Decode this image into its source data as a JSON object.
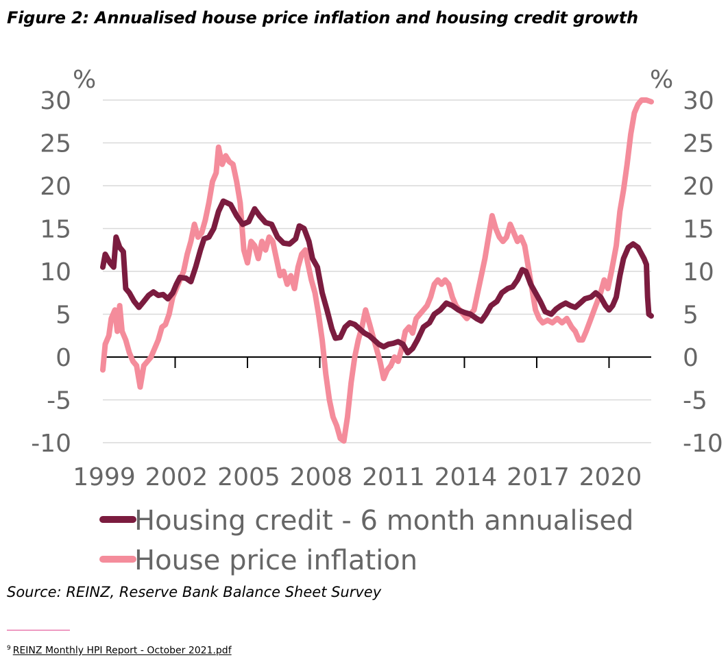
{
  "title": "Figure 2: Annualised house price inflation and housing credit growth",
  "source": "Source: REINZ, Reserve Bank Balance Sheet Survey",
  "footnote": {
    "marker": "9",
    "link_text": "REINZ Monthly HPI Report - October 2021.pdf"
  },
  "chart_data": {
    "type": "line",
    "title": "Annualised house price inflation and housing credit growth",
    "ylabel_left": "%",
    "ylabel_right": "%",
    "ylim": [
      -10,
      30
    ],
    "yticks": [
      30,
      25,
      20,
      15,
      10,
      5,
      0,
      -5,
      -10
    ],
    "ytick_labels": [
      "30",
      "25",
      "20",
      "15",
      "10",
      "5",
      "0",
      "-5",
      "-10"
    ],
    "xlim": [
      1999,
      2021.75
    ],
    "xticks": [
      1999,
      2002,
      2005,
      2008,
      2011,
      2014,
      2017,
      2020
    ],
    "xtick_labels": [
      "1999",
      "2002",
      "2005",
      "2008",
      "2011",
      "2014",
      "2017",
      "2020"
    ],
    "grid": true,
    "legend_position": "bottom",
    "series": [
      {
        "name": "Housing credit - 6 month annualised",
        "color": "#7b1c3f",
        "points": [
          [
            1999.0,
            10.5
          ],
          [
            1999.1,
            12.0
          ],
          [
            1999.3,
            11.0
          ],
          [
            1999.45,
            10.5
          ],
          [
            1999.55,
            14.0
          ],
          [
            1999.7,
            12.8
          ],
          [
            1999.85,
            12.3
          ],
          [
            1999.95,
            8.0
          ],
          [
            2000.1,
            7.5
          ],
          [
            2000.3,
            6.5
          ],
          [
            2000.5,
            5.8
          ],
          [
            2000.7,
            6.5
          ],
          [
            2000.9,
            7.2
          ],
          [
            2001.1,
            7.6
          ],
          [
            2001.3,
            7.2
          ],
          [
            2001.5,
            7.3
          ],
          [
            2001.7,
            6.8
          ],
          [
            2001.9,
            7.5
          ],
          [
            2002.05,
            8.5
          ],
          [
            2002.2,
            9.3
          ],
          [
            2002.45,
            9.2
          ],
          [
            2002.65,
            8.8
          ],
          [
            2002.85,
            10.5
          ],
          [
            2003.05,
            12.5
          ],
          [
            2003.2,
            13.8
          ],
          [
            2003.4,
            14.0
          ],
          [
            2003.6,
            15.0
          ],
          [
            2003.8,
            17.0
          ],
          [
            2004.0,
            18.2
          ],
          [
            2004.3,
            17.8
          ],
          [
            2004.55,
            16.5
          ],
          [
            2004.8,
            15.5
          ],
          [
            2005.05,
            15.8
          ],
          [
            2005.3,
            17.3
          ],
          [
            2005.5,
            16.5
          ],
          [
            2005.75,
            15.7
          ],
          [
            2006.0,
            15.5
          ],
          [
            2006.25,
            14.0
          ],
          [
            2006.5,
            13.3
          ],
          [
            2006.75,
            13.2
          ],
          [
            2007.0,
            13.8
          ],
          [
            2007.15,
            15.3
          ],
          [
            2007.35,
            15.0
          ],
          [
            2007.55,
            13.5
          ],
          [
            2007.7,
            11.5
          ],
          [
            2007.9,
            10.5
          ],
          [
            2008.1,
            7.5
          ],
          [
            2008.3,
            5.5
          ],
          [
            2008.5,
            3.3
          ],
          [
            2008.65,
            2.2
          ],
          [
            2008.85,
            2.3
          ],
          [
            2009.05,
            3.5
          ],
          [
            2009.25,
            4.0
          ],
          [
            2009.45,
            3.8
          ],
          [
            2009.65,
            3.3
          ],
          [
            2009.85,
            2.8
          ],
          [
            2010.05,
            2.5
          ],
          [
            2010.25,
            2.0
          ],
          [
            2010.45,
            1.5
          ],
          [
            2010.65,
            1.2
          ],
          [
            2010.85,
            1.5
          ],
          [
            2011.05,
            1.6
          ],
          [
            2011.25,
            1.8
          ],
          [
            2011.45,
            1.5
          ],
          [
            2011.65,
            0.5
          ],
          [
            2011.85,
            1.0
          ],
          [
            2012.05,
            2.0
          ],
          [
            2012.3,
            3.5
          ],
          [
            2012.55,
            4.0
          ],
          [
            2012.75,
            5.0
          ],
          [
            2013.0,
            5.5
          ],
          [
            2013.25,
            6.3
          ],
          [
            2013.5,
            6.0
          ],
          [
            2013.75,
            5.5
          ],
          [
            2014.0,
            5.2
          ],
          [
            2014.25,
            5.0
          ],
          [
            2014.5,
            4.5
          ],
          [
            2014.7,
            4.2
          ],
          [
            2014.9,
            5.0
          ],
          [
            2015.1,
            6.0
          ],
          [
            2015.35,
            6.5
          ],
          [
            2015.55,
            7.5
          ],
          [
            2015.8,
            8.0
          ],
          [
            2016.0,
            8.2
          ],
          [
            2016.2,
            9.0
          ],
          [
            2016.4,
            10.2
          ],
          [
            2016.55,
            10.0
          ],
          [
            2016.75,
            8.5
          ],
          [
            2016.95,
            7.5
          ],
          [
            2017.15,
            6.5
          ],
          [
            2017.35,
            5.3
          ],
          [
            2017.6,
            5.0
          ],
          [
            2017.8,
            5.6
          ],
          [
            2018.0,
            6.0
          ],
          [
            2018.2,
            6.3
          ],
          [
            2018.4,
            6.0
          ],
          [
            2018.6,
            5.8
          ],
          [
            2018.8,
            6.3
          ],
          [
            2019.0,
            6.8
          ],
          [
            2019.25,
            7.0
          ],
          [
            2019.45,
            7.5
          ],
          [
            2019.65,
            7.0
          ],
          [
            2019.85,
            6.0
          ],
          [
            2020.0,
            5.5
          ],
          [
            2020.15,
            6.0
          ],
          [
            2020.3,
            7.0
          ],
          [
            2020.45,
            9.5
          ],
          [
            2020.6,
            11.5
          ],
          [
            2020.8,
            12.8
          ],
          [
            2021.0,
            13.2
          ],
          [
            2021.2,
            12.8
          ],
          [
            2021.45,
            11.5
          ],
          [
            2021.55,
            10.8
          ],
          [
            2021.6,
            7.0
          ],
          [
            2021.65,
            5.0
          ],
          [
            2021.75,
            4.8
          ]
        ]
      },
      {
        "name": "House price inflation",
        "color": "#f48c9b",
        "points": [
          [
            1999.0,
            -1.5
          ],
          [
            1999.1,
            1.5
          ],
          [
            1999.25,
            2.5
          ],
          [
            1999.35,
            4.5
          ],
          [
            1999.5,
            5.5
          ],
          [
            1999.6,
            3.0
          ],
          [
            1999.7,
            6.0
          ],
          [
            1999.8,
            3.0
          ],
          [
            1999.95,
            2.0
          ],
          [
            2000.1,
            0.5
          ],
          [
            2000.25,
            -0.5
          ],
          [
            2000.4,
            -1.0
          ],
          [
            2000.55,
            -3.5
          ],
          [
            2000.7,
            -1.0
          ],
          [
            2000.85,
            -0.5
          ],
          [
            2001.0,
            0.0
          ],
          [
            2001.15,
            1.0
          ],
          [
            2001.3,
            2.0
          ],
          [
            2001.45,
            3.5
          ],
          [
            2001.6,
            3.8
          ],
          [
            2001.75,
            5.0
          ],
          [
            2001.9,
            7.0
          ],
          [
            2002.05,
            8.0
          ],
          [
            2002.2,
            9.0
          ],
          [
            2002.35,
            10.0
          ],
          [
            2002.5,
            12.0
          ],
          [
            2002.65,
            13.5
          ],
          [
            2002.8,
            15.5
          ],
          [
            2002.95,
            14.0
          ],
          [
            2003.1,
            14.5
          ],
          [
            2003.25,
            16.0
          ],
          [
            2003.4,
            18.0
          ],
          [
            2003.55,
            20.5
          ],
          [
            2003.7,
            21.5
          ],
          [
            2003.8,
            24.5
          ],
          [
            2003.95,
            22.5
          ],
          [
            2004.1,
            23.5
          ],
          [
            2004.25,
            22.8
          ],
          [
            2004.4,
            22.5
          ],
          [
            2004.55,
            20.5
          ],
          [
            2004.7,
            18.0
          ],
          [
            2004.85,
            12.5
          ],
          [
            2005.0,
            11.0
          ],
          [
            2005.15,
            13.5
          ],
          [
            2005.3,
            13.0
          ],
          [
            2005.45,
            11.5
          ],
          [
            2005.6,
            13.5
          ],
          [
            2005.75,
            12.5
          ],
          [
            2005.9,
            14.0
          ],
          [
            2006.05,
            13.5
          ],
          [
            2006.2,
            11.5
          ],
          [
            2006.35,
            9.5
          ],
          [
            2006.5,
            10.0
          ],
          [
            2006.65,
            8.5
          ],
          [
            2006.8,
            9.5
          ],
          [
            2006.95,
            8.0
          ],
          [
            2007.1,
            10.5
          ],
          [
            2007.25,
            12.0
          ],
          [
            2007.4,
            12.5
          ],
          [
            2007.5,
            11.0
          ],
          [
            2007.65,
            9.0
          ],
          [
            2007.8,
            7.5
          ],
          [
            2007.95,
            5.0
          ],
          [
            2008.1,
            2.0
          ],
          [
            2008.25,
            -2.0
          ],
          [
            2008.4,
            -5.0
          ],
          [
            2008.55,
            -7.0
          ],
          [
            2008.7,
            -8.0
          ],
          [
            2008.85,
            -9.5
          ],
          [
            2009.0,
            -9.8
          ],
          [
            2009.15,
            -7.0
          ],
          [
            2009.3,
            -3.0
          ],
          [
            2009.45,
            0.0
          ],
          [
            2009.6,
            2.0
          ],
          [
            2009.75,
            3.5
          ],
          [
            2009.9,
            5.5
          ],
          [
            2010.05,
            4.0
          ],
          [
            2010.2,
            2.5
          ],
          [
            2010.35,
            1.0
          ],
          [
            2010.5,
            -0.5
          ],
          [
            2010.65,
            -2.5
          ],
          [
            2010.8,
            -1.5
          ],
          [
            2010.95,
            -1.0
          ],
          [
            2011.1,
            0.0
          ],
          [
            2011.25,
            -0.5
          ],
          [
            2011.4,
            1.0
          ],
          [
            2011.55,
            3.0
          ],
          [
            2011.7,
            3.5
          ],
          [
            2011.85,
            2.8
          ],
          [
            2012.0,
            4.5
          ],
          [
            2012.15,
            5.0
          ],
          [
            2012.3,
            5.5
          ],
          [
            2012.45,
            6.0
          ],
          [
            2012.6,
            7.0
          ],
          [
            2012.75,
            8.5
          ],
          [
            2012.9,
            9.0
          ],
          [
            2013.05,
            8.5
          ],
          [
            2013.2,
            9.0
          ],
          [
            2013.35,
            8.5
          ],
          [
            2013.5,
            7.0
          ],
          [
            2013.65,
            6.0
          ],
          [
            2013.8,
            5.5
          ],
          [
            2013.95,
            5.0
          ],
          [
            2014.1,
            4.5
          ],
          [
            2014.25,
            5.0
          ],
          [
            2014.4,
            5.5
          ],
          [
            2014.55,
            7.5
          ],
          [
            2014.7,
            9.5
          ],
          [
            2014.85,
            11.5
          ],
          [
            2015.0,
            14.0
          ],
          [
            2015.15,
            16.5
          ],
          [
            2015.3,
            15.0
          ],
          [
            2015.45,
            14.0
          ],
          [
            2015.6,
            13.5
          ],
          [
            2015.75,
            14.0
          ],
          [
            2015.9,
            15.5
          ],
          [
            2016.05,
            14.5
          ],
          [
            2016.2,
            13.5
          ],
          [
            2016.35,
            14.0
          ],
          [
            2016.5,
            13.0
          ],
          [
            2016.65,
            10.5
          ],
          [
            2016.8,
            8.0
          ],
          [
            2016.95,
            5.5
          ],
          [
            2017.1,
            4.5
          ],
          [
            2017.25,
            4.0
          ],
          [
            2017.45,
            4.3
          ],
          [
            2017.65,
            4.0
          ],
          [
            2017.85,
            4.5
          ],
          [
            2018.05,
            4.0
          ],
          [
            2018.25,
            4.5
          ],
          [
            2018.45,
            3.5
          ],
          [
            2018.6,
            3.0
          ],
          [
            2018.75,
            2.0
          ],
          [
            2018.9,
            2.0
          ],
          [
            2019.05,
            3.0
          ],
          [
            2019.25,
            4.5
          ],
          [
            2019.45,
            6.0
          ],
          [
            2019.65,
            7.5
          ],
          [
            2019.8,
            9.0
          ],
          [
            2019.95,
            8.0
          ],
          [
            2020.1,
            10.0
          ],
          [
            2020.3,
            13.0
          ],
          [
            2020.45,
            17.0
          ],
          [
            2020.6,
            19.5
          ],
          [
            2020.75,
            22.5
          ],
          [
            2020.9,
            26.0
          ],
          [
            2021.05,
            28.5
          ],
          [
            2021.2,
            29.5
          ],
          [
            2021.35,
            30.0
          ],
          [
            2021.55,
            30.0
          ],
          [
            2021.75,
            29.8
          ]
        ]
      }
    ]
  }
}
